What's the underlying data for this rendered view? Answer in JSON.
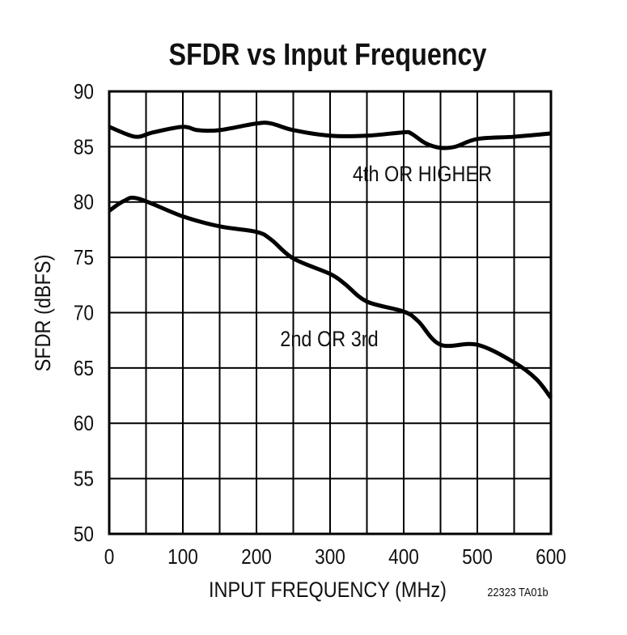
{
  "chart_data": {
    "type": "line",
    "title": "SFDR vs Input Frequency",
    "xlabel": "INPUT FREQUENCY (MHz)",
    "ylabel": "SFDR (dBFS)",
    "xlim": [
      0,
      600
    ],
    "ylim": [
      50,
      90
    ],
    "xticks": [
      0,
      100,
      200,
      300,
      400,
      500,
      600
    ],
    "yticks": [
      50,
      55,
      60,
      65,
      70,
      75,
      80,
      85,
      90
    ],
    "x_grid_step": 50,
    "grid": true,
    "footnote": "22323 TA01b",
    "series": [
      {
        "name": "4th OR HIGHER",
        "x": [
          0,
          25,
          40,
          60,
          100,
          120,
          150,
          200,
          220,
          250,
          300,
          350,
          400,
          410,
          430,
          450,
          470,
          500,
          550,
          600
        ],
        "y": [
          86.8,
          86.1,
          85.9,
          86.3,
          86.8,
          86.5,
          86.5,
          87.1,
          87.1,
          86.5,
          86.0,
          86.0,
          86.3,
          86.2,
          85.3,
          84.9,
          85.0,
          85.7,
          85.9,
          86.2
        ]
      },
      {
        "name": "2nd OR 3rd",
        "x": [
          0,
          20,
          40,
          100,
          150,
          200,
          220,
          250,
          300,
          320,
          350,
          400,
          420,
          450,
          500,
          550,
          580,
          600
        ],
        "y": [
          79.2,
          80.1,
          80.3,
          78.7,
          77.8,
          77.3,
          76.6,
          74.9,
          73.5,
          72.6,
          71.0,
          70.1,
          69.2,
          67.1,
          67.1,
          65.5,
          64.0,
          62.3
        ]
      }
    ],
    "color": "#000000"
  }
}
